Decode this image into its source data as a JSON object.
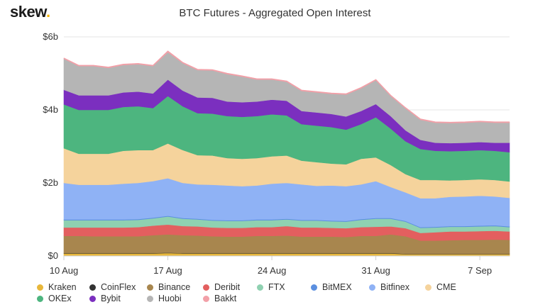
{
  "logo": {
    "text": "skew",
    "dot": "."
  },
  "chart_data": {
    "type": "area",
    "stacked": true,
    "title": "BTC Futures - Aggregated Open Interest",
    "xlabel": "",
    "ylabel": "",
    "x_unit": "days",
    "ylim": [
      0,
      6
    ],
    "y_ticks": [
      {
        "value": 0,
        "label": "$0"
      },
      {
        "value": 2,
        "label": "$2b"
      },
      {
        "value": 4,
        "label": "$4b"
      },
      {
        "value": 6,
        "label": "$6b"
      }
    ],
    "x_ticks": [
      {
        "value": 0,
        "label": "10 Aug"
      },
      {
        "value": 7,
        "label": "17 Aug"
      },
      {
        "value": 14,
        "label": "24 Aug"
      },
      {
        "value": 21,
        "label": "31 Aug"
      },
      {
        "value": 28,
        "label": "7 Sep"
      }
    ],
    "x": [
      0,
      1,
      2,
      3,
      4,
      5,
      6,
      7,
      8,
      9,
      10,
      11,
      12,
      13,
      14,
      15,
      16,
      17,
      18,
      19,
      20,
      21,
      22,
      23,
      24,
      25,
      26,
      27,
      28,
      29,
      30
    ],
    "series": [
      {
        "name": "Kraken",
        "color": "#e8b73a",
        "values": [
          0.07,
          0.07,
          0.07,
          0.07,
          0.07,
          0.07,
          0.07,
          0.08,
          0.07,
          0.07,
          0.07,
          0.07,
          0.07,
          0.07,
          0.07,
          0.07,
          0.07,
          0.07,
          0.07,
          0.07,
          0.07,
          0.07,
          0.07,
          0.05,
          0.05,
          0.05,
          0.05,
          0.05,
          0.05,
          0.05,
          0.05
        ]
      },
      {
        "name": "CoinFlex",
        "color": "#333333",
        "values": [
          0.01,
          0.01,
          0.01,
          0.01,
          0.01,
          0.01,
          0.01,
          0.01,
          0.01,
          0.01,
          0.01,
          0.01,
          0.01,
          0.01,
          0.01,
          0.01,
          0.01,
          0.01,
          0.01,
          0.01,
          0.01,
          0.01,
          0.01,
          0.01,
          0.01,
          0.01,
          0.01,
          0.01,
          0.01,
          0.01,
          0.01
        ]
      },
      {
        "name": "Binance",
        "color": "#a8864e",
        "values": [
          0.47,
          0.47,
          0.46,
          0.46,
          0.46,
          0.46,
          0.49,
          0.5,
          0.49,
          0.48,
          0.46,
          0.45,
          0.45,
          0.47,
          0.47,
          0.48,
          0.45,
          0.45,
          0.45,
          0.44,
          0.47,
          0.47,
          0.51,
          0.48,
          0.36,
          0.36,
          0.37,
          0.38,
          0.38,
          0.39,
          0.38
        ]
      },
      {
        "name": "Deribit",
        "color": "#e35f5f",
        "values": [
          0.23,
          0.23,
          0.24,
          0.24,
          0.24,
          0.25,
          0.26,
          0.27,
          0.25,
          0.25,
          0.24,
          0.24,
          0.24,
          0.24,
          0.24,
          0.26,
          0.25,
          0.25,
          0.24,
          0.24,
          0.24,
          0.25,
          0.22,
          0.22,
          0.21,
          0.23,
          0.24,
          0.23,
          0.24,
          0.24,
          0.23
        ]
      },
      {
        "name": "FTX",
        "color": "#8fd1b1",
        "values": [
          0.2,
          0.2,
          0.2,
          0.2,
          0.2,
          0.2,
          0.2,
          0.22,
          0.2,
          0.19,
          0.19,
          0.19,
          0.19,
          0.19,
          0.19,
          0.18,
          0.19,
          0.19,
          0.18,
          0.18,
          0.2,
          0.22,
          0.21,
          0.18,
          0.14,
          0.13,
          0.13,
          0.13,
          0.13,
          0.13,
          0.12
        ]
      },
      {
        "name": "BitMEX",
        "color": "#5b8fe0",
        "values": [
          0.02,
          0.02,
          0.02,
          0.02,
          0.02,
          0.02,
          0.02,
          0.02,
          0.02,
          0.02,
          0.02,
          0.02,
          0.02,
          0.02,
          0.02,
          0.02,
          0.02,
          0.02,
          0.02,
          0.02,
          0.02,
          0.02,
          0.02,
          0.02,
          0.02,
          0.02,
          0.02,
          0.02,
          0.02,
          0.02,
          0.02
        ]
      },
      {
        "name": "Bitfinex",
        "color": "#8fb2f5",
        "values": [
          1.0,
          0.95,
          0.95,
          0.95,
          0.98,
          0.99,
          1.0,
          1.03,
          0.96,
          0.94,
          0.96,
          0.95,
          0.93,
          0.93,
          0.98,
          0.98,
          0.97,
          0.93,
          0.96,
          0.95,
          0.95,
          1.01,
          0.85,
          0.78,
          0.79,
          0.78,
          0.8,
          0.81,
          0.82,
          0.79,
          0.78
        ]
      },
      {
        "name": "CME",
        "color": "#f5d39c",
        "values": [
          0.95,
          0.85,
          0.85,
          0.85,
          0.9,
          0.9,
          0.85,
          0.95,
          0.9,
          0.8,
          0.8,
          0.75,
          0.75,
          0.75,
          0.75,
          0.75,
          0.65,
          0.65,
          0.6,
          0.6,
          0.7,
          0.65,
          0.6,
          0.5,
          0.5,
          0.5,
          0.45,
          0.45,
          0.45,
          0.45,
          0.45
        ]
      },
      {
        "name": "OKEx",
        "color": "#4db57f",
        "values": [
          1.2,
          1.2,
          1.2,
          1.2,
          1.2,
          1.2,
          1.15,
          1.3,
          1.2,
          1.15,
          1.15,
          1.15,
          1.15,
          1.15,
          1.15,
          1.1,
          1.0,
          1.0,
          1.0,
          0.95,
          0.95,
          1.1,
          1.0,
          0.9,
          0.85,
          0.8,
          0.8,
          0.8,
          0.8,
          0.8,
          0.8
        ]
      },
      {
        "name": "Bybit",
        "color": "#7b2fbf",
        "values": [
          0.4,
          0.4,
          0.4,
          0.4,
          0.4,
          0.4,
          0.4,
          0.45,
          0.43,
          0.43,
          0.43,
          0.4,
          0.4,
          0.4,
          0.4,
          0.4,
          0.36,
          0.36,
          0.36,
          0.36,
          0.36,
          0.36,
          0.34,
          0.3,
          0.25,
          0.22,
          0.22,
          0.22,
          0.22,
          0.22,
          0.26
        ]
      },
      {
        "name": "Huobi",
        "color": "#b5b5b5",
        "values": [
          0.85,
          0.8,
          0.8,
          0.75,
          0.75,
          0.75,
          0.75,
          0.75,
          0.75,
          0.75,
          0.75,
          0.75,
          0.7,
          0.6,
          0.55,
          0.52,
          0.55,
          0.55,
          0.55,
          0.6,
          0.62,
          0.65,
          0.55,
          0.6,
          0.55,
          0.55,
          0.55,
          0.55,
          0.55,
          0.55,
          0.55
        ]
      },
      {
        "name": "Bakkt",
        "color": "#f2a0a8",
        "values": [
          0.02,
          0.02,
          0.02,
          0.02,
          0.02,
          0.02,
          0.02,
          0.03,
          0.02,
          0.02,
          0.02,
          0.02,
          0.02,
          0.02,
          0.02,
          0.02,
          0.02,
          0.02,
          0.02,
          0.02,
          0.02,
          0.02,
          0.02,
          0.02,
          0.02,
          0.02,
          0.02,
          0.02,
          0.02,
          0.02,
          0.02
        ]
      }
    ],
    "legend_position": "bottom",
    "grid": "horizontal"
  },
  "legend_rows": [
    [
      "Kraken",
      "CoinFlex",
      "Binance",
      "Deribit",
      "FTX",
      "BitMEX",
      "Bitfinex",
      "CME"
    ],
    [
      "OKEx",
      "Bybit",
      "Huobi",
      "Bakkt"
    ]
  ]
}
